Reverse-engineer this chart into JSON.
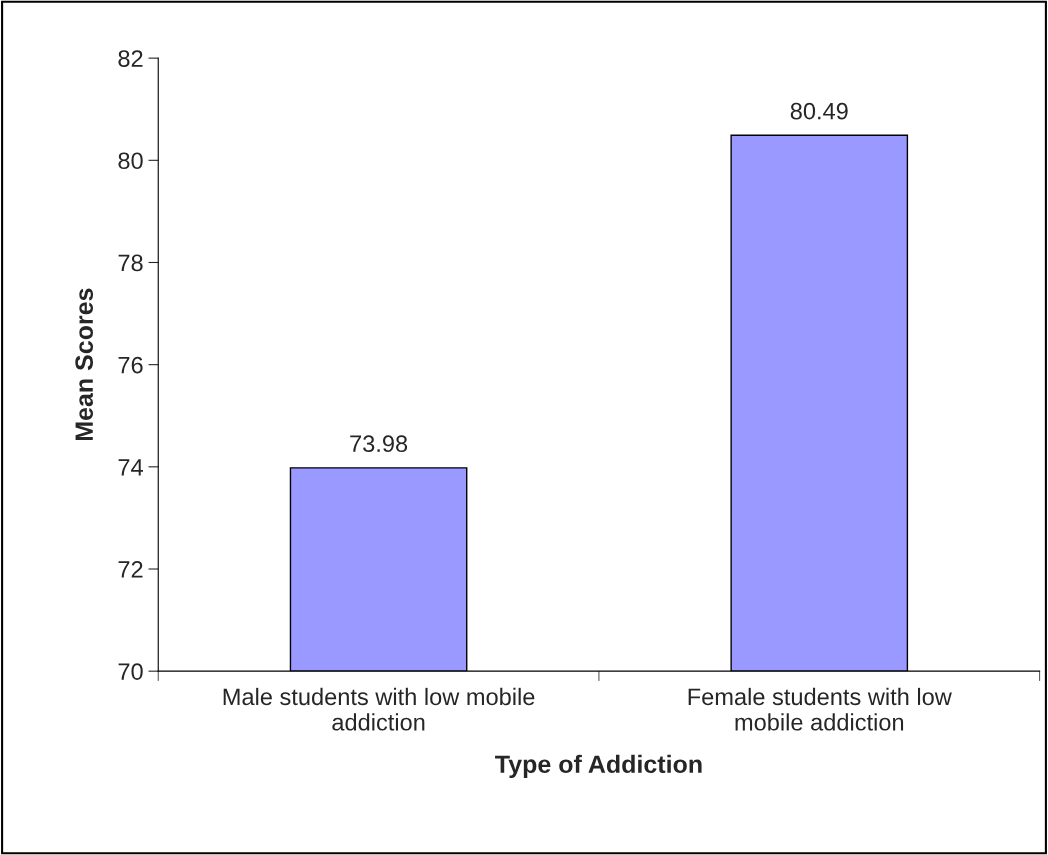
{
  "chart_data": {
    "type": "bar",
    "xlabel": "Type of Addiction",
    "ylabel": "Mean Scores",
    "categories": [
      "Male students with low mobile\naddiction",
      "Female students with low\nmobile addiction"
    ],
    "values": [
      73.98,
      80.49
    ],
    "color": "#9999ff",
    "ylim": [
      70,
      82
    ],
    "yticks": [
      70,
      72,
      74,
      76,
      78,
      80,
      82
    ],
    "grid": false,
    "data_labels": true
  }
}
